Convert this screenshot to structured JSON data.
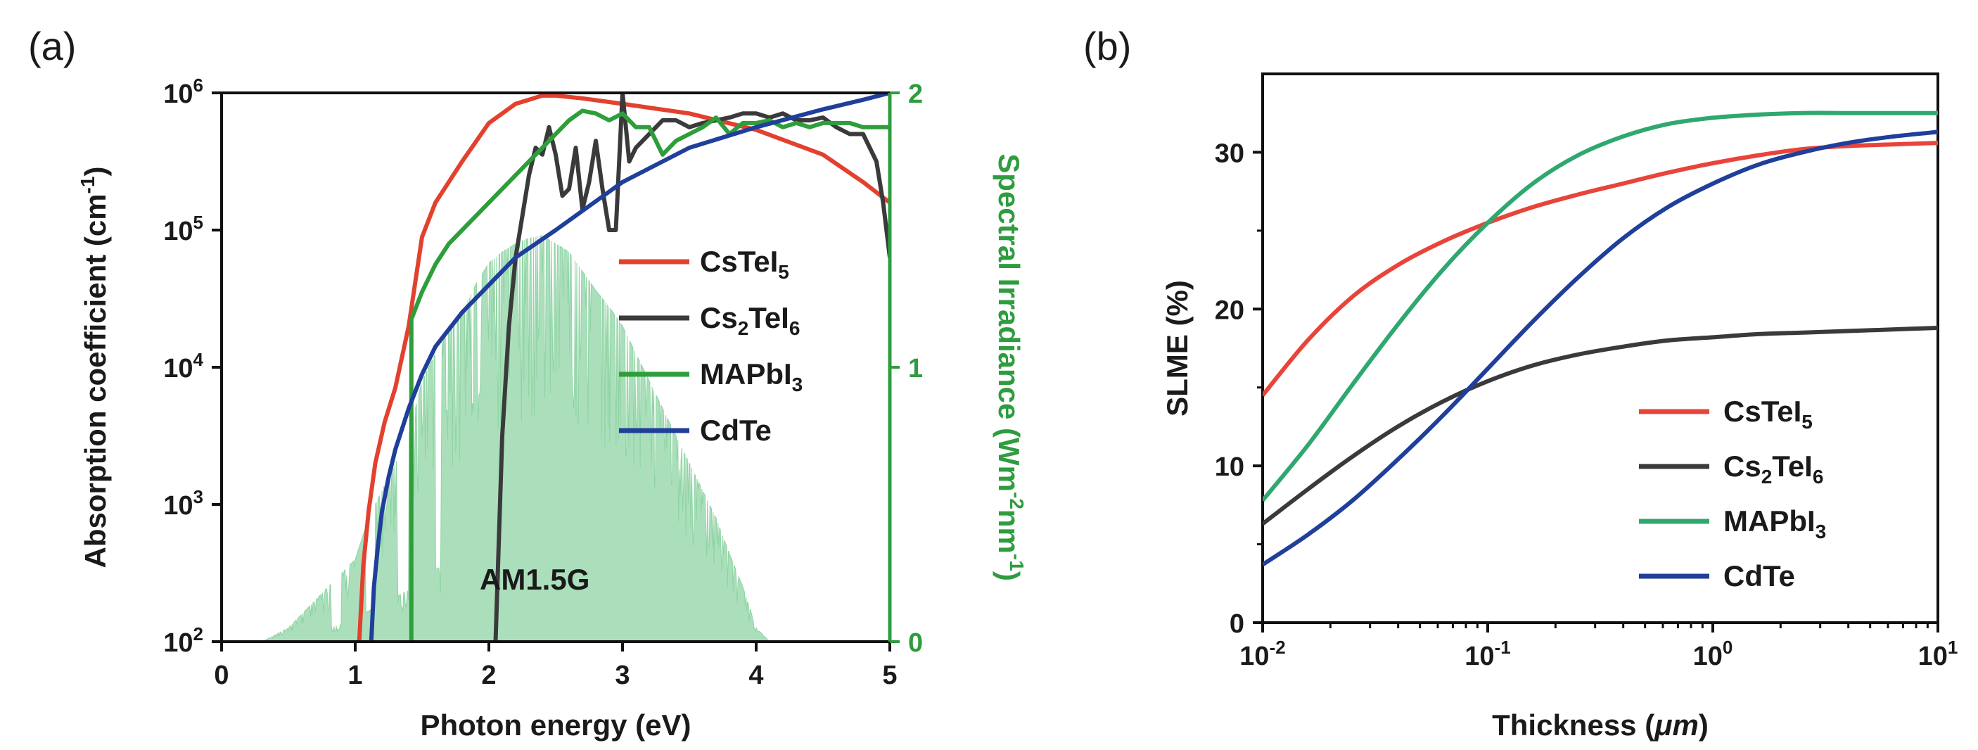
{
  "chart_data": [
    {
      "panel_label": "(a)",
      "type": "line",
      "xlabel": "Photon energy (eV)",
      "ylabel": "Absorption coefficient (cm⁻¹)",
      "ylabel_right": "Spectral Irradiance (Wm⁻²nm⁻¹)",
      "xlim": [
        0,
        5
      ],
      "ylim_log": [
        2,
        6
      ],
      "ylim_right": [
        0,
        2
      ],
      "x_ticks": [
        "0",
        "1",
        "2",
        "3",
        "4",
        "5"
      ],
      "y_ticks": [
        {
          "base": "10",
          "exp": "2"
        },
        {
          "base": "10",
          "exp": "3"
        },
        {
          "base": "10",
          "exp": "4"
        },
        {
          "base": "10",
          "exp": "5"
        },
        {
          "base": "10",
          "exp": "6"
        }
      ],
      "y_right_ticks": [
        "0",
        "1",
        "2"
      ],
      "annotation": "AM1.5G",
      "colors": {
        "CsTeI5": "#e2412e",
        "Cs2TeI6": "#3a3a3a",
        "MAPbI3": "#2e9e3a",
        "CdTe": "#1f3f9a",
        "am15": "#8fd4a4",
        "right_axis": "#2f9c3f"
      },
      "legend": [
        {
          "key": "CsTeI5",
          "base": "CsTeI",
          "sub": "5",
          "tail": ""
        },
        {
          "key": "Cs2TeI6",
          "base": "Cs",
          "sub": "2",
          "tail": "TeI",
          "sub2": "6"
        },
        {
          "key": "MAPbI3",
          "base": "MAPbI",
          "sub": "3",
          "tail": ""
        },
        {
          "key": "CdTe",
          "base": "CdTe",
          "sub": "",
          "tail": ""
        }
      ],
      "series": [
        {
          "name": "CsTeI5",
          "x": [
            1.03,
            1.06,
            1.1,
            1.15,
            1.22,
            1.3,
            1.4,
            1.5,
            1.6,
            1.8,
            2.0,
            2.2,
            2.4,
            2.5,
            2.7,
            3.0,
            3.5,
            4.0,
            4.5,
            4.8,
            5.0
          ],
          "log_y": [
            2.0,
            2.55,
            2.95,
            3.3,
            3.6,
            3.85,
            4.3,
            4.95,
            5.2,
            5.5,
            5.78,
            5.92,
            5.98,
            5.98,
            5.96,
            5.92,
            5.85,
            5.73,
            5.55,
            5.35,
            5.2
          ]
        },
        {
          "name": "Cs2TeI6",
          "x": [
            2.05,
            2.1,
            2.15,
            2.2,
            2.25,
            2.3,
            2.35,
            2.4,
            2.45,
            2.5,
            2.55,
            2.6,
            2.65,
            2.7,
            2.75,
            2.8,
            2.85,
            2.9,
            2.95,
            3.0,
            3.05,
            3.1,
            3.2,
            3.3,
            3.4,
            3.5,
            3.6,
            3.7,
            3.8,
            3.9,
            4.0,
            4.1,
            4.2,
            4.3,
            4.4,
            4.5,
            4.6,
            4.7,
            4.8,
            4.85,
            4.9,
            4.95,
            5.0
          ],
          "log_y": [
            2.0,
            3.5,
            4.3,
            4.8,
            5.1,
            5.4,
            5.6,
            5.55,
            5.75,
            5.55,
            5.25,
            5.3,
            5.6,
            5.15,
            5.35,
            5.65,
            5.3,
            5.0,
            5.0,
            6.0,
            5.5,
            5.6,
            5.7,
            5.8,
            5.8,
            5.75,
            5.78,
            5.8,
            5.82,
            5.85,
            5.85,
            5.82,
            5.85,
            5.8,
            5.8,
            5.82,
            5.75,
            5.7,
            5.7,
            5.6,
            5.5,
            5.2,
            4.8
          ]
        },
        {
          "name": "MAPbI3",
          "x": [
            1.42,
            1.42,
            1.5,
            1.6,
            1.7,
            1.8,
            1.9,
            2.0,
            2.1,
            2.2,
            2.3,
            2.4,
            2.5,
            2.6,
            2.7,
            2.8,
            2.9,
            3.0,
            3.1,
            3.2,
            3.3,
            3.4,
            3.5,
            3.6,
            3.7,
            3.8,
            3.9,
            4.0,
            4.1,
            4.2,
            4.3,
            4.4,
            4.5,
            4.6,
            4.7,
            4.8,
            4.9,
            5.0
          ],
          "log_y": [
            2.0,
            4.35,
            4.55,
            4.75,
            4.9,
            5.0,
            5.1,
            5.2,
            5.3,
            5.4,
            5.5,
            5.6,
            5.7,
            5.8,
            5.87,
            5.85,
            5.8,
            5.85,
            5.75,
            5.75,
            5.55,
            5.65,
            5.7,
            5.75,
            5.82,
            5.7,
            5.78,
            5.78,
            5.8,
            5.75,
            5.78,
            5.75,
            5.78,
            5.78,
            5.78,
            5.75,
            5.75,
            5.75
          ]
        },
        {
          "name": "CdTe",
          "x": [
            1.12,
            1.14,
            1.17,
            1.2,
            1.25,
            1.3,
            1.4,
            1.5,
            1.6,
            1.8,
            2.0,
            2.2,
            2.5,
            3.0,
            3.5,
            4.0,
            4.5,
            4.8,
            5.0
          ],
          "log_y": [
            2.0,
            2.4,
            2.7,
            2.95,
            3.2,
            3.4,
            3.7,
            3.95,
            4.15,
            4.4,
            4.6,
            4.8,
            5.0,
            5.35,
            5.6,
            5.75,
            5.88,
            5.95,
            6.0
          ]
        }
      ],
      "am15_envelope": {
        "x": [
          0.3,
          0.5,
          0.6,
          0.7,
          0.8,
          0.9,
          1.0,
          1.1,
          1.2,
          1.3,
          1.4,
          1.5,
          1.6,
          1.7,
          1.8,
          1.9,
          2.0,
          2.1,
          2.2,
          2.3,
          2.4,
          2.5,
          2.6,
          2.7,
          2.8,
          2.9,
          3.0,
          3.1,
          3.2,
          3.3,
          3.4,
          3.5,
          3.6,
          3.7,
          3.8,
          3.9,
          4.0,
          4.1
        ],
        "irradiance": [
          0.0,
          0.05,
          0.1,
          0.15,
          0.2,
          0.25,
          0.3,
          0.45,
          0.55,
          0.65,
          0.75,
          0.95,
          1.05,
          1.15,
          1.2,
          1.3,
          1.38,
          1.42,
          1.45,
          1.47,
          1.48,
          1.45,
          1.42,
          1.35,
          1.28,
          1.22,
          1.15,
          1.05,
          0.95,
          0.85,
          0.75,
          0.65,
          0.55,
          0.45,
          0.32,
          0.2,
          0.05,
          0.0
        ]
      }
    },
    {
      "panel_label": "(b)",
      "type": "line",
      "xlabel": "Thickness (μm)",
      "ylabel": "SLME (%)",
      "xlim_log": [
        -2,
        1
      ],
      "ylim": [
        0,
        35
      ],
      "x_ticks": [
        {
          "base": "10",
          "exp": "-2"
        },
        {
          "base": "10",
          "exp": "-1"
        },
        {
          "base": "10",
          "exp": "0"
        },
        {
          "base": "10",
          "exp": "1"
        }
      ],
      "y_ticks": [
        "0",
        "10",
        "20",
        "30"
      ],
      "colors": {
        "CsTeI5": "#e8443a",
        "Cs2TeI6": "#3a3a3a",
        "MAPbI3": "#2fa870",
        "CdTe": "#1f3f9a"
      },
      "legend": [
        {
          "key": "CsTeI5",
          "base": "CsTeI",
          "sub": "5",
          "tail": ""
        },
        {
          "key": "Cs2TeI6",
          "base": "Cs",
          "sub": "2",
          "tail": "TeI",
          "sub2": "6"
        },
        {
          "key": "MAPbI3",
          "base": "MAPbI",
          "sub": "3",
          "tail": ""
        },
        {
          "key": "CdTe",
          "base": "CdTe",
          "sub": "",
          "tail": ""
        }
      ],
      "series": [
        {
          "name": "CsTeI5",
          "log_x": [
            -2.0,
            -1.8,
            -1.6,
            -1.4,
            -1.2,
            -1.0,
            -0.8,
            -0.6,
            -0.4,
            -0.2,
            0.0,
            0.2,
            0.4,
            0.6,
            0.8,
            1.0
          ],
          "values": [
            14.5,
            18.0,
            20.8,
            22.8,
            24.3,
            25.5,
            26.5,
            27.3,
            28.0,
            28.7,
            29.3,
            29.8,
            30.2,
            30.4,
            30.5,
            30.6
          ]
        },
        {
          "name": "Cs2TeI6",
          "log_x": [
            -2.0,
            -1.8,
            -1.6,
            -1.4,
            -1.2,
            -1.0,
            -0.8,
            -0.6,
            -0.4,
            -0.2,
            0.0,
            0.2,
            0.4,
            0.6,
            0.8,
            1.0
          ],
          "values": [
            6.3,
            8.5,
            10.6,
            12.5,
            14.1,
            15.4,
            16.4,
            17.1,
            17.6,
            18.0,
            18.2,
            18.4,
            18.5,
            18.6,
            18.7,
            18.8
          ]
        },
        {
          "name": "MAPbI3",
          "log_x": [
            -2.0,
            -1.8,
            -1.6,
            -1.4,
            -1.2,
            -1.0,
            -0.8,
            -0.6,
            -0.4,
            -0.2,
            0.0,
            0.2,
            0.4,
            0.6,
            0.8,
            1.0
          ],
          "values": [
            7.8,
            11.3,
            15.2,
            19.0,
            22.5,
            25.5,
            28.0,
            29.8,
            31.0,
            31.8,
            32.2,
            32.4,
            32.5,
            32.5,
            32.5,
            32.5
          ]
        },
        {
          "name": "CdTe",
          "log_x": [
            -2.0,
            -1.8,
            -1.6,
            -1.4,
            -1.2,
            -1.0,
            -0.8,
            -0.6,
            -0.4,
            -0.2,
            0.0,
            0.2,
            0.4,
            0.6,
            0.8,
            1.0
          ],
          "values": [
            3.7,
            5.6,
            7.8,
            10.4,
            13.2,
            16.2,
            19.2,
            22.0,
            24.5,
            26.5,
            28.0,
            29.2,
            30.0,
            30.6,
            31.0,
            31.3
          ]
        }
      ]
    }
  ]
}
